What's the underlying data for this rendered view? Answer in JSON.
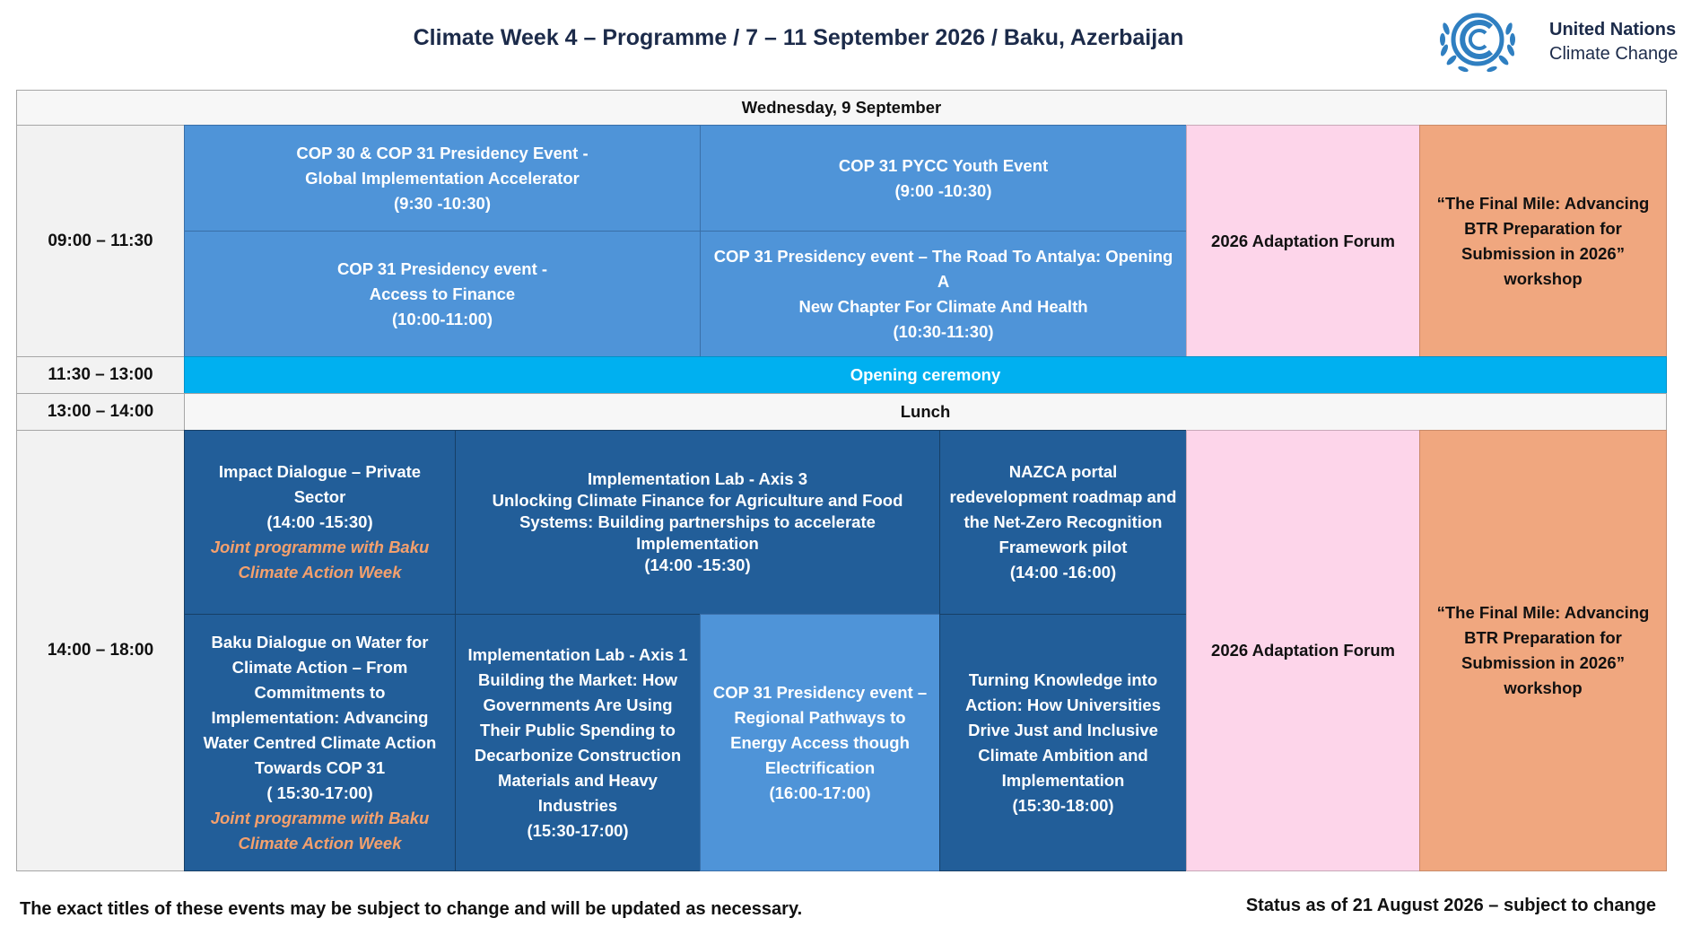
{
  "header": {
    "title": "Climate Week 4 – Programme / 7 – 11 September 2026 / Baku, Azerbaijan",
    "brand_line1": "United Nations",
    "brand_line2": "Climate Change"
  },
  "day": "Wednesday, 9 September",
  "times": {
    "t1": "09:00 – 11:30",
    "t2": "11:30 – 13:00",
    "t3": "13:00 – 14:00",
    "t4": "14:00 – 18:00"
  },
  "morning": {
    "e1": [
      "COP 30 & COP 31 Presidency Event -",
      "Global Implementation Accelerator",
      "(9:30 -10:30)"
    ],
    "e2": [
      "COP 31 PYCC Youth Event",
      "(9:00 -10:30)"
    ],
    "e3": [
      "COP 31 Presidency event -",
      "Access to Finance",
      "(10:00-11:00)"
    ],
    "e4": [
      "COP 31 Presidency event – The Road To Antalya: Opening A",
      "New Chapter For Climate And Health",
      "(10:30-11:30)"
    ],
    "adaptation": "2026 Adaptation Forum",
    "btr": [
      "“The Final Mile: Advancing",
      "BTR Preparation for",
      "Submission in 2026”",
      "workshop"
    ]
  },
  "midday": {
    "opening": "Opening ceremony",
    "lunch": "Lunch"
  },
  "afternoon": {
    "a1": [
      "Impact Dialogue – Private",
      "Sector",
      "(14:00 -15:30)"
    ],
    "a1_note": [
      "Joint programme with Baku",
      "Climate Action Week"
    ],
    "a2": [
      "Implementation Lab - Axis 3",
      "Unlocking Climate Finance for Agriculture and Food",
      "Systems: Building partnerships to accelerate",
      "Implementation",
      "(14:00 -15:30)"
    ],
    "a3": [
      "NAZCA portal",
      "redevelopment roadmap and",
      "the Net-Zero Recognition",
      "Framework pilot",
      "(14:00 -16:00)"
    ],
    "b1": [
      "Baku Dialogue on Water for",
      "Climate Action – From",
      "Commitments to",
      "Implementation: Advancing",
      "Water Centred Climate Action",
      "Towards COP 31",
      "( 15:30-17:00)"
    ],
    "b1_note": [
      "Joint programme with Baku",
      "Climate Action Week"
    ],
    "b2": [
      "Implementation Lab - Axis 1",
      "Building the Market: How",
      "Governments Are Using",
      "Their Public Spending to",
      "Decarbonize Construction",
      "Materials and Heavy",
      "Industries",
      "(15:30-17:00)"
    ],
    "b3": [
      "COP 31 Presidency event –",
      "Regional Pathways to",
      "Energy Access though",
      "Electrification",
      "(16:00-17:00)"
    ],
    "b4": [
      "Turning Knowledge into",
      "Action: How Universities",
      "Drive Just and Inclusive",
      "Climate Ambition and",
      "Implementation",
      "(15:30-18:00)"
    ],
    "adaptation": "2026 Adaptation Forum",
    "btr": [
      "“The Final Mile: Advancing",
      "BTR Preparation for",
      "Submission in 2026”",
      "workshop"
    ]
  },
  "footer": {
    "left": "The exact titles of these events may be subject to change and will be updated as necessary.",
    "right": "Status as of 21 August 2026 – subject to change"
  },
  "colors": {
    "light_blue": "#4f94d8",
    "dark_blue": "#225e99",
    "cyan": "#00b0f0",
    "pink": "#fdd5ea",
    "peach": "#f0a77f",
    "note_orange": "#f4a06d",
    "un_blue": "#2f7fc1"
  },
  "icons": [
    "unfccc-emblem-icon"
  ]
}
